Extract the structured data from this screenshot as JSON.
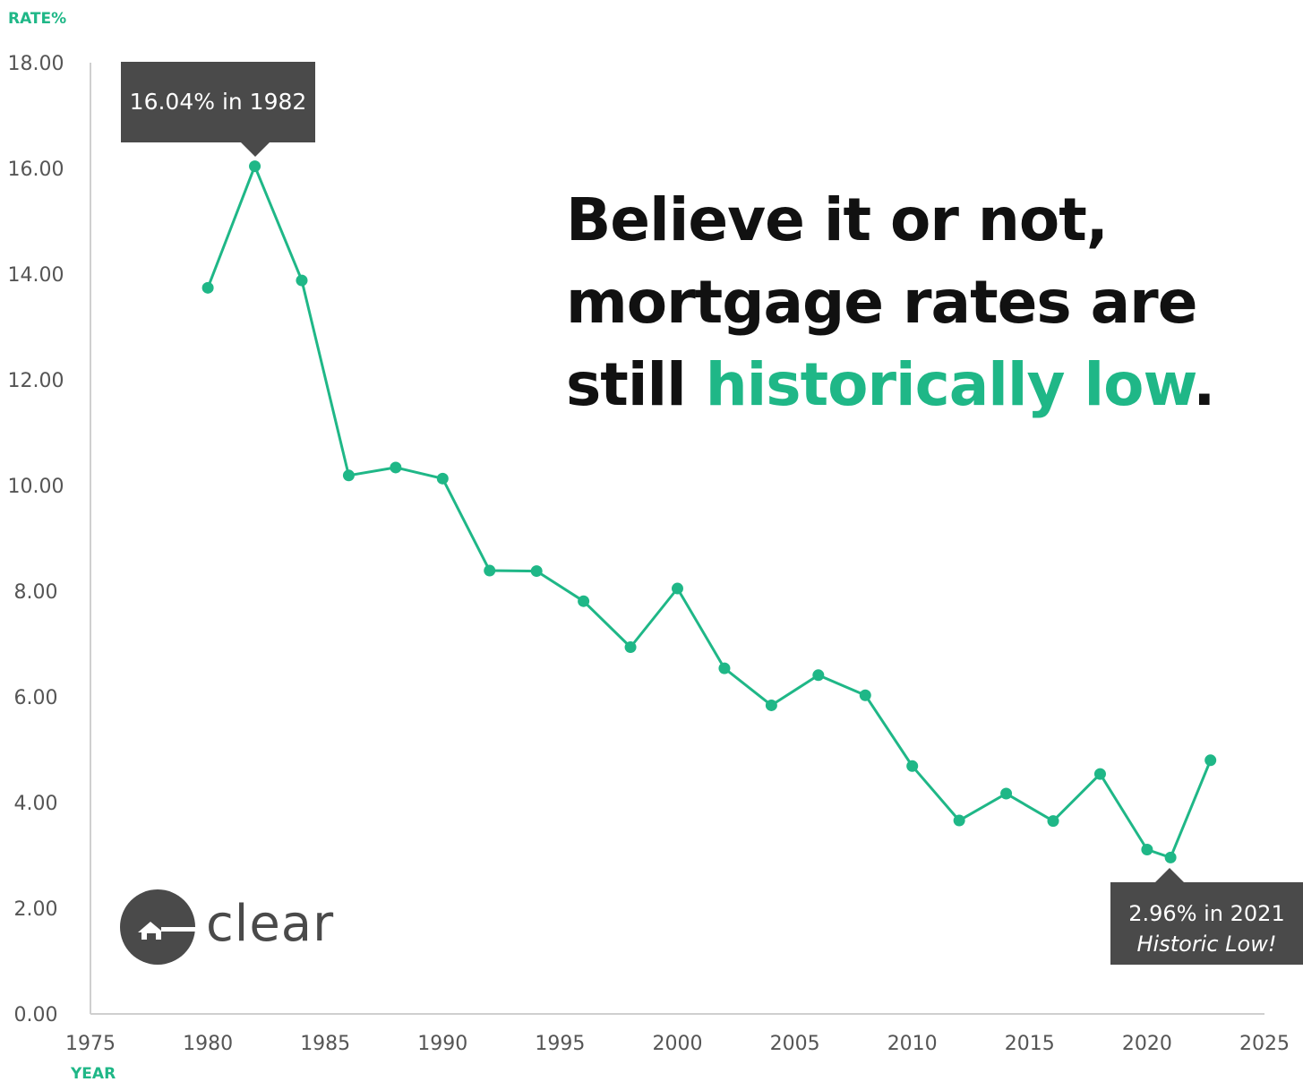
{
  "colors": {
    "accent": "#1fb787",
    "dark_box": "#4a4a4a",
    "axis_text": "#555555",
    "axis_line": "#cfcfcf"
  },
  "headline": {
    "line1": "Believe it or not,",
    "line2": "mortgage rates are",
    "line3_prefix": "still ",
    "line3_accent": "historically low",
    "line3_suffix": "."
  },
  "callouts": {
    "peak": "16.04% in 1982",
    "low_line1": "2.96% in 2021",
    "low_line2": "Historic Low!"
  },
  "logo": {
    "icon": "house-logo-icon",
    "text": "clear"
  },
  "chart_data": {
    "type": "line",
    "title": "",
    "xlabel": "YEAR",
    "ylabel": "RATE%",
    "xlim": [
      1975,
      2025
    ],
    "ylim": [
      0,
      18
    ],
    "x_ticks": [
      "1975",
      "1980",
      "1985",
      "1990",
      "1995",
      "2000",
      "2005",
      "2010",
      "2015",
      "2020",
      "2025"
    ],
    "y_ticks": [
      "0.00",
      "2.00",
      "4.00",
      "6.00",
      "8.00",
      "10.00",
      "12.00",
      "14.00",
      "16.00",
      "18.00"
    ],
    "grid": false,
    "legend": "none",
    "series": [
      {
        "x": [
          1980,
          1982,
          1984,
          1986,
          1988,
          1990,
          1992,
          1994,
          1996,
          1998,
          2000,
          2002,
          2004,
          2006,
          2008,
          2010,
          2012,
          2014,
          2016,
          2018,
          2020,
          2021,
          2022.7
        ],
        "y": [
          13.74,
          16.04,
          13.88,
          10.19,
          10.34,
          10.13,
          8.39,
          8.38,
          7.81,
          6.94,
          8.05,
          6.54,
          5.84,
          6.41,
          6.03,
          4.69,
          3.66,
          4.17,
          3.65,
          4.54,
          3.11,
          2.96,
          4.8
        ]
      }
    ]
  }
}
